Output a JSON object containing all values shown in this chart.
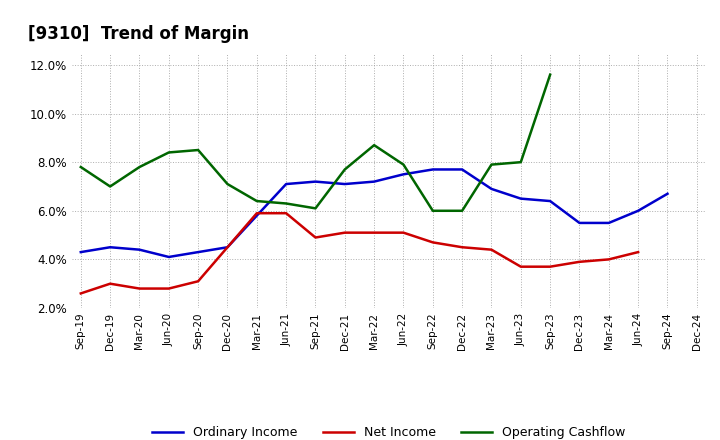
{
  "title": "[9310]  Trend of Margin",
  "x_labels": [
    "Sep-19",
    "Dec-19",
    "Mar-20",
    "Jun-20",
    "Sep-20",
    "Dec-20",
    "Mar-21",
    "Jun-21",
    "Sep-21",
    "Dec-21",
    "Mar-22",
    "Jun-22",
    "Sep-22",
    "Dec-22",
    "Mar-23",
    "Jun-23",
    "Sep-23",
    "Dec-23",
    "Mar-24",
    "Jun-24",
    "Sep-24",
    "Dec-24"
  ],
  "ordinary_income": [
    4.3,
    4.5,
    4.4,
    4.1,
    4.3,
    4.5,
    5.8,
    7.1,
    7.2,
    7.1,
    7.2,
    7.5,
    7.7,
    7.7,
    6.9,
    6.5,
    6.4,
    5.5,
    5.5,
    6.0,
    6.7,
    null
  ],
  "net_income": [
    2.6,
    3.0,
    2.8,
    2.8,
    3.1,
    4.5,
    5.9,
    5.9,
    4.9,
    5.1,
    5.1,
    5.1,
    4.7,
    4.5,
    4.4,
    3.7,
    3.7,
    3.9,
    4.0,
    4.3,
    null,
    null
  ],
  "operating_cashflow": [
    7.8,
    7.0,
    7.8,
    8.4,
    8.5,
    7.1,
    6.4,
    6.3,
    6.1,
    7.7,
    8.7,
    7.9,
    6.0,
    6.0,
    7.9,
    8.0,
    11.6,
    null,
    null,
    null,
    null,
    null
  ],
  "ordinary_income_color": "#0000CC",
  "net_income_color": "#CC0000",
  "operating_cashflow_color": "#006600",
  "ylim": [
    2.0,
    12.5
  ],
  "yticks": [
    2.0,
    4.0,
    6.0,
    8.0,
    10.0,
    12.0
  ],
  "background_color": "#FFFFFF",
  "grid_color": "#999999",
  "title_fontsize": 12,
  "legend_labels": [
    "Ordinary Income",
    "Net Income",
    "Operating Cashflow"
  ],
  "legend_fontsize": 9
}
